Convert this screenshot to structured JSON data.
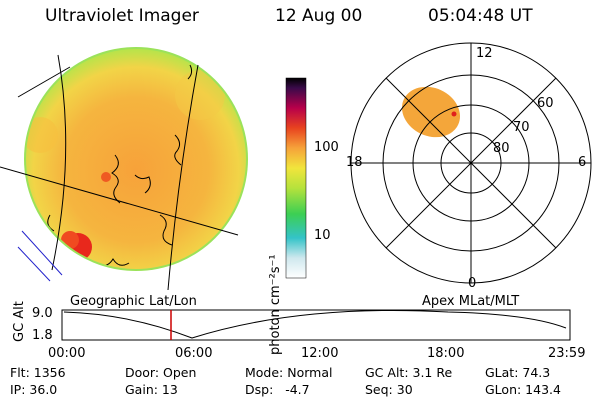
{
  "header": {
    "instrument": "Ultraviolet Imager",
    "date": "12 Aug 00",
    "time": "05:04:48 UT"
  },
  "colorbar": {
    "label": "photon cm⁻²s⁻¹",
    "ticks": [
      "100",
      "10"
    ],
    "scale": "log"
  },
  "polar_plot": {
    "mlt_labels": [
      "12",
      "18",
      "6",
      "0"
    ],
    "lat_labels": [
      "60",
      "70",
      "80"
    ]
  },
  "map_labels": {
    "left": "Geographic Lat/Lon",
    "right": "Apex MLat/MLT"
  },
  "altitude_plot": {
    "ylabel": "GC Alt",
    "yticks": [
      "9.0",
      "1.8"
    ],
    "xticks": [
      "00:00",
      "06:00",
      "12:00",
      "18:00",
      "23:59"
    ],
    "current_time_marker": "05:04:48"
  },
  "info": {
    "flt": "Flt: 1356",
    "ip": "IP: 36.0",
    "door": "Door: Open",
    "gain": "Gain: 13",
    "mode": "Mode: Normal",
    "dsp": "Dsp:   -4.7",
    "gcalt": "GC Alt: 3.1 Re",
    "seq": "Seq: 30",
    "glat": "GLat: 74.3",
    "glon": "GLon: 143.4"
  }
}
